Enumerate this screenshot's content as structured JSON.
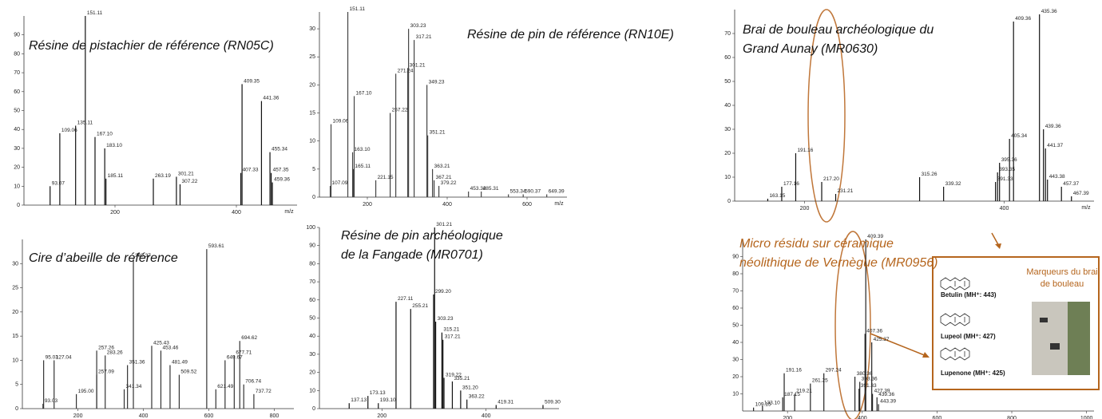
{
  "chart_data": [
    {
      "type": "stem",
      "title_lines": [
        "Résine de pistachier de référence (RN05C)"
      ],
      "xlabel": "m/z",
      "color": "#111111",
      "x": [
        93.07,
        109.06,
        135.11,
        151.11,
        167.1,
        183.1,
        185.11,
        263.19,
        301.21,
        307.22,
        407.33,
        409.35,
        441.36,
        455.34,
        457.35,
        459.36
      ],
      "x_labels": [
        "93.07",
        "109.06",
        "135.11",
        "151.11",
        "167.10",
        "183.10",
        "185.11",
        "263.19",
        "301.21",
        "307.22",
        "407.33",
        "409.35",
        "441.36",
        "455.34",
        "457.35",
        "459.36"
      ],
      "values": [
        10,
        38,
        42,
        100,
        36,
        30,
        14,
        14,
        15,
        11,
        17,
        64,
        55,
        28,
        17,
        12
      ],
      "xlim": [
        50,
        500
      ],
      "ylim": [
        0,
        100
      ],
      "xticks": [
        200,
        400
      ],
      "yticks": [
        0,
        10,
        20,
        30,
        40,
        50,
        60,
        70,
        80,
        90
      ]
    },
    {
      "type": "stem",
      "title_lines": [
        "Résine de pin de référence (RN10E)"
      ],
      "xlabel": "m/z",
      "color": "#444444",
      "x": [
        107.09,
        109.06,
        151.11,
        163.1,
        165.11,
        167.1,
        221.15,
        257.22,
        271.24,
        301.21,
        303.23,
        317.21,
        349.23,
        351.21,
        363.21,
        367.21,
        379.22,
        453.32,
        485.31,
        553.34,
        590.37,
        649.39
      ],
      "x_labels": [
        "107.09",
        "109.06",
        "151.11",
        "163.10",
        "165.11",
        "167.10",
        "221.15",
        "257.22",
        "271.24",
        "301.21",
        "303.23",
        "317.21",
        "349.23",
        "351.21",
        "363.21",
        "367.21",
        "379.22",
        "453.32",
        "485.31",
        "553.34",
        "590.37",
        "649.39"
      ],
      "values": [
        2,
        13,
        33,
        8,
        5,
        18,
        3,
        15,
        22,
        23,
        30,
        28,
        20,
        11,
        5,
        3,
        2,
        1,
        1,
        0.5,
        0.5,
        0.5
      ],
      "xlim": [
        80,
        700
      ],
      "ylim": [
        0,
        33
      ],
      "xticks": [
        200,
        400,
        600
      ],
      "yticks": [
        0,
        5,
        10,
        15,
        20,
        25,
        30
      ]
    },
    {
      "type": "stem",
      "title_lines": [
        "Brai de bouleau archéologique du",
        "Grand Aunay (MR0630)"
      ],
      "xlabel": "m/z",
      "color": "#111111",
      "x": [
        163.15,
        177.16,
        191.16,
        217.2,
        231.21,
        315.26,
        339.32,
        391.33,
        393.35,
        395.36,
        405.34,
        409.36,
        435.36,
        439.36,
        441.37,
        443.38,
        457.37,
        467.39
      ],
      "x_labels": [
        "163.15",
        "177.16",
        "191.16",
        "217.20",
        "231.21",
        "315.26",
        "339.32",
        "391.33",
        "393.35",
        "395.36",
        "405.34",
        "409.36",
        "435.36",
        "439.36",
        "441.37",
        "443.38",
        "457.37",
        "467.39"
      ],
      "values": [
        1,
        6,
        20,
        8,
        3,
        10,
        6,
        8,
        12,
        16,
        26,
        75,
        78,
        30,
        22,
        9,
        6,
        2
      ],
      "xlim": [
        130,
        490
      ],
      "ylim": [
        0,
        80
      ],
      "xticks": [
        200,
        400
      ],
      "yticks": [
        0,
        10,
        20,
        30,
        40,
        50,
        60,
        70
      ]
    },
    {
      "type": "stem",
      "title_lines": [
        "Cire d’abeille de référence"
      ],
      "color": "#333333",
      "x": [
        93.03,
        95.03,
        127.04,
        195.0,
        257.09,
        257.26,
        283.26,
        341.34,
        351.36,
        369.37,
        425.43,
        453.46,
        481.49,
        509.52,
        593.61,
        621.49,
        649.67,
        677.71,
        694.62,
        706.74,
        737.72
      ],
      "x_labels": [
        "93.03",
        "95.03",
        "127.04",
        "195.00",
        "257.09",
        "257.26",
        "283.26",
        "341.34",
        "351.36",
        "369.37",
        "425.43",
        "453.46",
        "481.49",
        "509.52",
        "593.61",
        "621.49",
        "649.67",
        "677.71",
        "694.62",
        "706.74",
        "737.72"
      ],
      "values": [
        1,
        10,
        10,
        3,
        7,
        12,
        11,
        4,
        9,
        31,
        13,
        12,
        9,
        7,
        33,
        4,
        10,
        11,
        14,
        5,
        3
      ],
      "xlim": [
        30,
        860
      ],
      "ylim": [
        0,
        35
      ],
      "xticks": [
        200,
        400,
        600,
        800
      ],
      "yticks": [
        0,
        5,
        10,
        15,
        20,
        25,
        30
      ]
    },
    {
      "type": "stem",
      "title_lines": [
        "Résine de pin archéologique",
        "de la Fangade (MR0701)"
      ],
      "color": "#111111",
      "x": [
        137.13,
        173.13,
        193.1,
        227.11,
        255.21,
        299.2,
        301.21,
        303.23,
        315.21,
        317.21,
        319.22,
        335.21,
        351.2,
        363.22,
        419.31,
        509.3
      ],
      "x_labels": [
        "137.13",
        "173.13",
        "193.10",
        "227.11",
        "255.21",
        "299.20",
        "301.21",
        "303.23",
        "315.21",
        "317.21",
        "319.22",
        "335.21",
        "351.20",
        "363.22",
        "419.31",
        "509.30"
      ],
      "values": [
        3,
        7,
        3,
        59,
        55,
        63,
        100,
        48,
        42,
        38,
        17,
        15,
        10,
        5,
        2,
        2
      ],
      "xlim": [
        80,
        540
      ],
      "ylim": [
        0,
        100
      ],
      "xticks": [
        200,
        400
      ],
      "yticks": [
        0,
        10,
        20,
        30,
        40,
        50,
        60,
        70,
        80,
        90,
        100
      ]
    },
    {
      "type": "stem",
      "title_lines": [
        "Micro résidu sur céramique",
        "néolithique de Vernègue (MR0956)"
      ],
      "title_color": "#b5651d",
      "color": "#222222",
      "x": [
        109.15,
        133.1,
        187.15,
        191.16,
        219.21,
        261.25,
        297.24,
        380.36,
        391.33,
        393.36,
        407.36,
        409.39,
        425.37,
        427.39,
        439.36,
        443.39
      ],
      "x_labels": [
        "109.15",
        "133.10",
        "187.15",
        "191.16",
        "219.21",
        "261.25",
        "297.24",
        "380.36",
        "391.33",
        "393.36",
        "407.36",
        "409.39",
        "425.37",
        "427.39",
        "439.36",
        "443.39"
      ],
      "values": [
        2,
        3,
        8,
        22,
        10,
        16,
        22,
        20,
        13,
        17,
        45,
        100,
        40,
        10,
        8,
        4
      ],
      "xlim": [
        80,
        1020
      ],
      "ylim": [
        0,
        100
      ],
      "xticks": [
        200,
        400,
        600,
        800,
        1000
      ],
      "yticks": [
        10,
        20,
        30,
        40,
        50,
        60,
        70,
        80,
        90
      ]
    }
  ],
  "callout": {
    "title_lines": [
      "Marqueurs du brai",
      "de bouleau"
    ],
    "compounds": [
      "Betulin (MH⁺: 443)",
      "Lupeol (MH⁺: 427)",
      "Lupenone (MH⁺: 425)"
    ]
  }
}
